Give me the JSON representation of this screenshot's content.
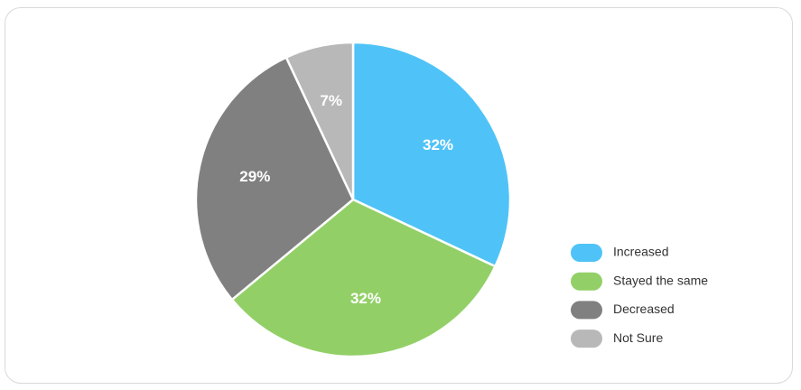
{
  "chart_data": {
    "type": "pie",
    "categories": [
      "Increased",
      "Stayed the same",
      "Decreased",
      "Not Sure"
    ],
    "values": [
      32,
      32,
      29,
      7
    ],
    "value_labels": [
      "32%",
      "32%",
      "29%",
      "7%"
    ],
    "colors": [
      "#4fc3f7",
      "#92d067",
      "#808080",
      "#b8b8b8"
    ],
    "legend": "right"
  }
}
